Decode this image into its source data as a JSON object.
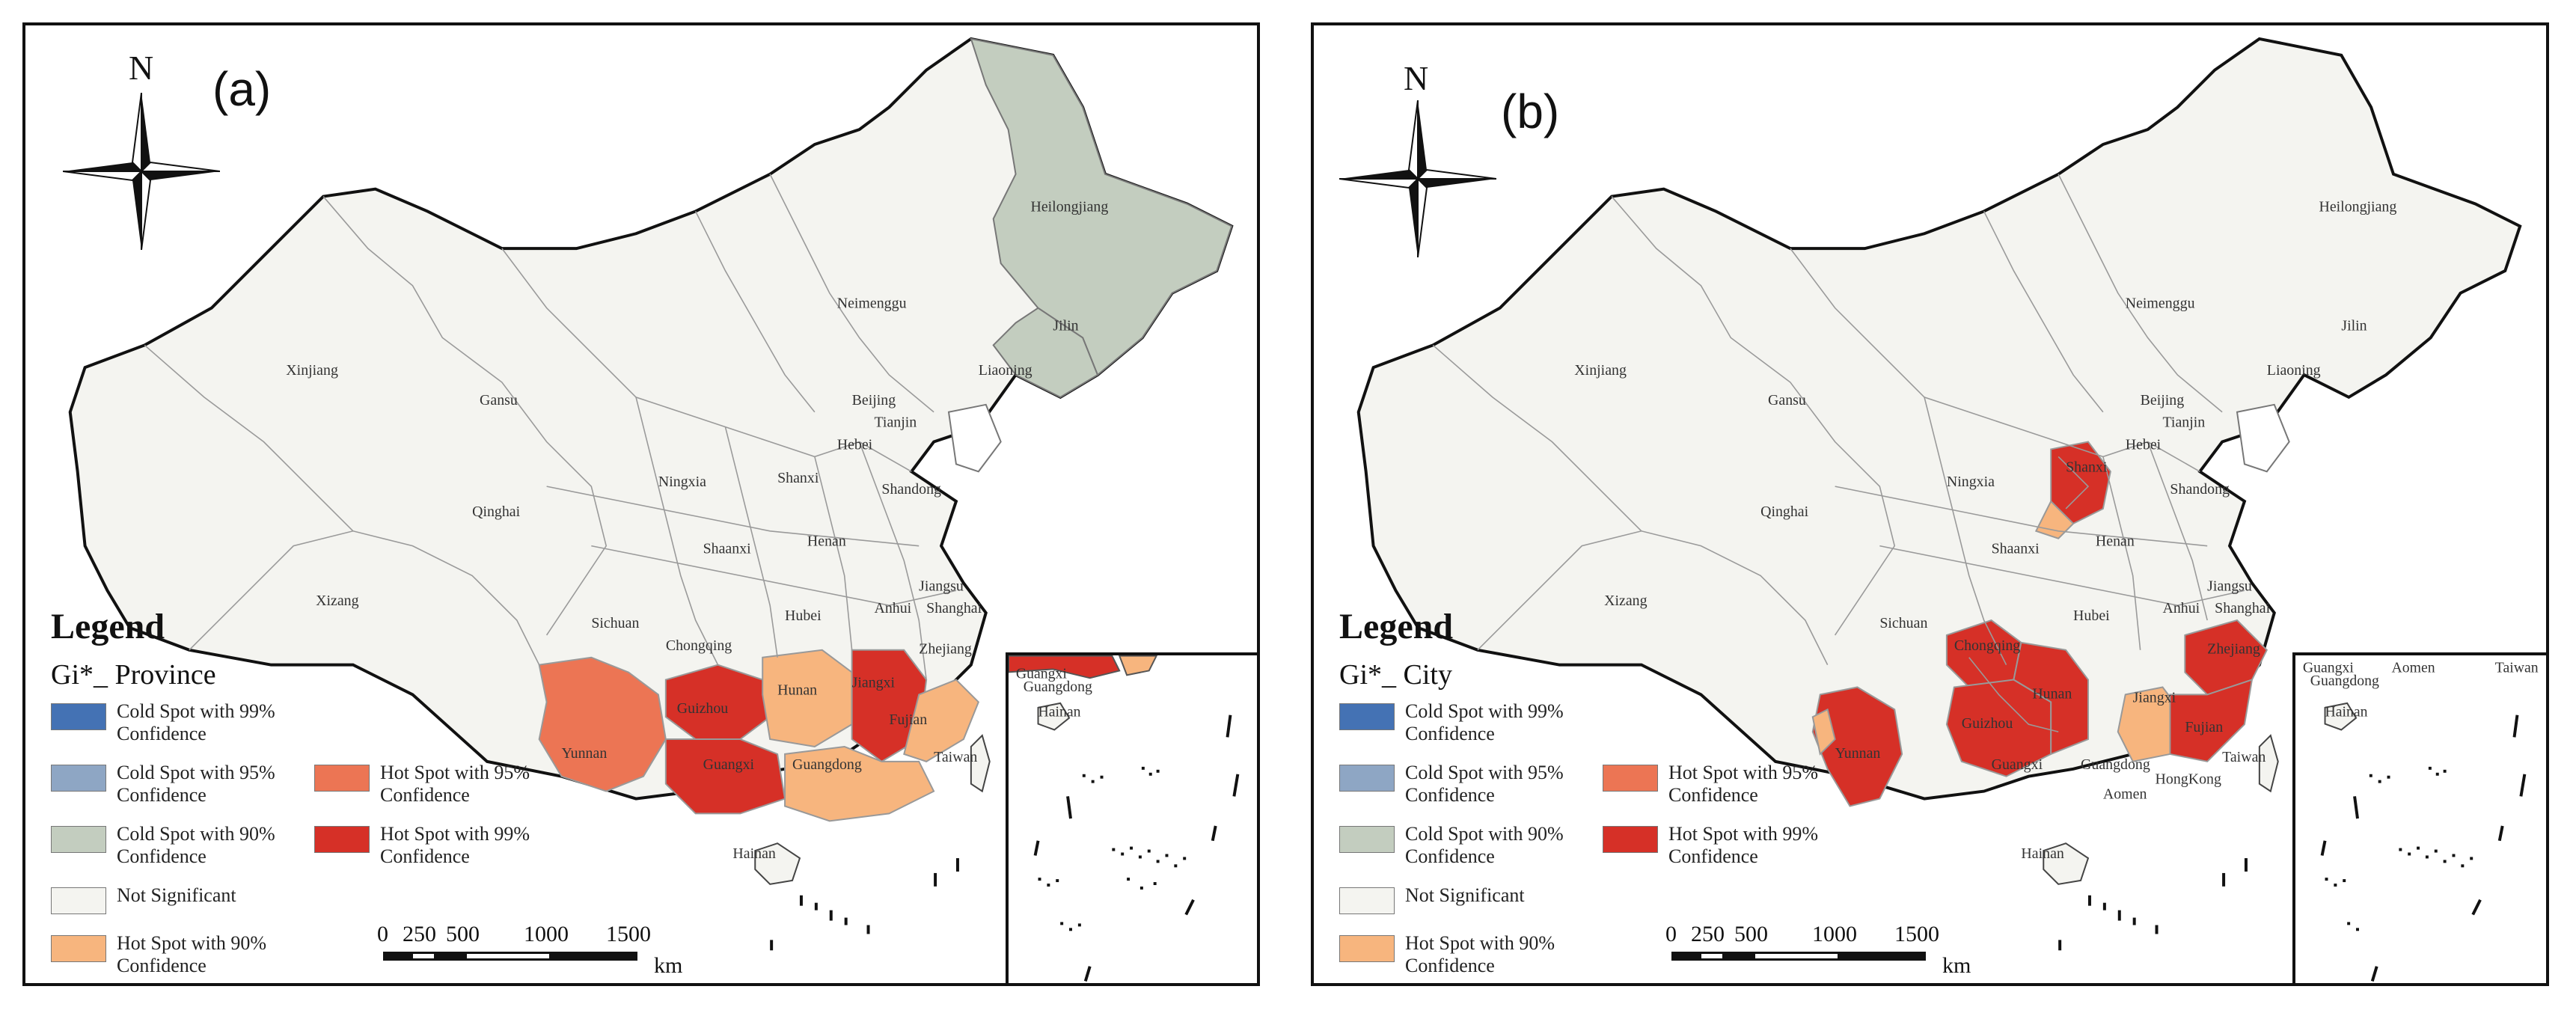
{
  "colors": {
    "cold99": "#4472b4",
    "cold95": "#8ea6c4",
    "cold90": "#c3cdbf",
    "not_significant": "#f4f4f0",
    "hot90": "#f7b57e",
    "hot95": "#ec7554",
    "hot99": "#d63027",
    "border": "#111111",
    "internal_border": "#9a9a9a"
  },
  "panels": [
    {
      "id": "a",
      "label": "(a)",
      "north_label": "N",
      "legend_title": "Legend",
      "legend_subtitle": "Gi*_ Province",
      "legend_items": [
        {
          "label": "Cold Spot with 99% Confidence",
          "color": "#4472b4"
        },
        {
          "label": "Cold Spot with 95% Confidence",
          "color": "#8ea6c4"
        },
        {
          "label": "Cold Spot with 90% Confidence",
          "color": "#c3cdbf"
        },
        {
          "label": "Not Significant",
          "color": "#f4f4f0"
        },
        {
          "label": "Hot Spot with 90% Confidence",
          "color": "#f7b57e"
        },
        {
          "label": "Hot Spot with 95% Confidence",
          "color": "#ec7554"
        },
        {
          "label": "Hot Spot with 99% Confidence",
          "color": "#d63027"
        }
      ],
      "scale_ticks": [
        "0",
        "250",
        "500",
        "1000",
        "1500"
      ],
      "scale_unit": "km",
      "provinces": [
        {
          "name": "Heilongjiang",
          "class": "cold90"
        },
        {
          "name": "Jilin",
          "class": "cold90"
        },
        {
          "name": "Neimenggu",
          "class": "not_significant"
        },
        {
          "name": "Liaoning",
          "class": "not_significant"
        },
        {
          "name": "Xinjiang",
          "class": "not_significant"
        },
        {
          "name": "Gansu",
          "class": "not_significant"
        },
        {
          "name": "Beijing",
          "class": "not_significant"
        },
        {
          "name": "Tianjin",
          "class": "not_significant"
        },
        {
          "name": "Hebei",
          "class": "not_significant"
        },
        {
          "name": "Ningxia",
          "class": "not_significant"
        },
        {
          "name": "Shanxi",
          "class": "not_significant"
        },
        {
          "name": "Shandong",
          "class": "not_significant"
        },
        {
          "name": "Qinghai",
          "class": "not_significant"
        },
        {
          "name": "Shaanxi",
          "class": "not_significant"
        },
        {
          "name": "Henan",
          "class": "not_significant"
        },
        {
          "name": "Xizang",
          "class": "not_significant"
        },
        {
          "name": "Jiangsu",
          "class": "not_significant"
        },
        {
          "name": "Shanghai",
          "class": "not_significant"
        },
        {
          "name": "Sichuan",
          "class": "not_significant"
        },
        {
          "name": "Hubei",
          "class": "not_significant"
        },
        {
          "name": "Anhui",
          "class": "not_significant"
        },
        {
          "name": "Chongqing",
          "class": "not_significant"
        },
        {
          "name": "Zhejiang",
          "class": "not_significant"
        },
        {
          "name": "Hunan",
          "class": "hot90"
        },
        {
          "name": "Jiangxi",
          "class": "hot99"
        },
        {
          "name": "Guizhou",
          "class": "hot99"
        },
        {
          "name": "Fujian",
          "class": "hot90"
        },
        {
          "name": "Yunnan",
          "class": "hot95"
        },
        {
          "name": "Guangxi",
          "class": "hot99"
        },
        {
          "name": "Guangdong",
          "class": "hot90"
        },
        {
          "name": "Taiwan",
          "class": "not_significant"
        },
        {
          "name": "Hainan",
          "class": "not_significant"
        }
      ]
    },
    {
      "id": "b",
      "label": "(b)",
      "north_label": "N",
      "legend_title": "Legend",
      "legend_subtitle": "Gi*_ City",
      "legend_items": [
        {
          "label": "Cold Spot with 99% Confidence",
          "color": "#4472b4"
        },
        {
          "label": "Cold Spot with 95% Confidence",
          "color": "#8ea6c4"
        },
        {
          "label": "Cold Spot with 90% Confidence",
          "color": "#c3cdbf"
        },
        {
          "label": "Not Significant",
          "color": "#f4f4f0"
        },
        {
          "label": "Hot Spot with 90% Confidence",
          "color": "#f7b57e"
        },
        {
          "label": "Hot Spot with 95% Confidence",
          "color": "#ec7554"
        },
        {
          "label": "Hot Spot with 99% Confidence",
          "color": "#d63027"
        }
      ],
      "scale_ticks": [
        "0",
        "250",
        "500",
        "1000",
        "1500"
      ],
      "scale_unit": "km",
      "provinces": [
        {
          "name": "Heilongjiang",
          "class": "not_significant"
        },
        {
          "name": "Jilin",
          "class": "not_significant"
        },
        {
          "name": "Neimenggu",
          "class": "not_significant"
        },
        {
          "name": "Liaoning",
          "class": "not_significant"
        },
        {
          "name": "Xinjiang",
          "class": "not_significant"
        },
        {
          "name": "Gansu",
          "class": "not_significant"
        },
        {
          "name": "Beijing",
          "class": "not_significant"
        },
        {
          "name": "Tianjin",
          "class": "not_significant"
        },
        {
          "name": "Hebei",
          "class": "not_significant"
        },
        {
          "name": "Ningxia",
          "class": "not_significant"
        },
        {
          "name": "Shanxi",
          "class": "hot99"
        },
        {
          "name": "Shandong",
          "class": "not_significant"
        },
        {
          "name": "Qinghai",
          "class": "not_significant"
        },
        {
          "name": "Shaanxi",
          "class": "not_significant"
        },
        {
          "name": "Henan",
          "class": "not_significant"
        },
        {
          "name": "Xizang",
          "class": "not_significant"
        },
        {
          "name": "Jiangsu",
          "class": "not_significant"
        },
        {
          "name": "Shanghai",
          "class": "not_significant"
        },
        {
          "name": "Sichuan",
          "class": "not_significant"
        },
        {
          "name": "Hubei",
          "class": "not_significant"
        },
        {
          "name": "Anhui",
          "class": "not_significant"
        },
        {
          "name": "Chongqing",
          "class": "hot99"
        },
        {
          "name": "Zhejiang",
          "class": "hot99"
        },
        {
          "name": "Hunan",
          "class": "hot99"
        },
        {
          "name": "Jiangxi",
          "class": "hot90"
        },
        {
          "name": "Guizhou",
          "class": "hot99"
        },
        {
          "name": "Fujian",
          "class": "hot99"
        },
        {
          "name": "Yunnan",
          "class": "hot99"
        },
        {
          "name": "Guangxi",
          "class": "not_significant"
        },
        {
          "name": "Guangdong",
          "class": "not_significant"
        },
        {
          "name": "HongKong",
          "class": "not_significant"
        },
        {
          "name": "Aomen",
          "class": "not_significant"
        },
        {
          "name": "Taiwan",
          "class": "not_significant"
        },
        {
          "name": "Hainan",
          "class": "not_significant"
        }
      ]
    }
  ]
}
